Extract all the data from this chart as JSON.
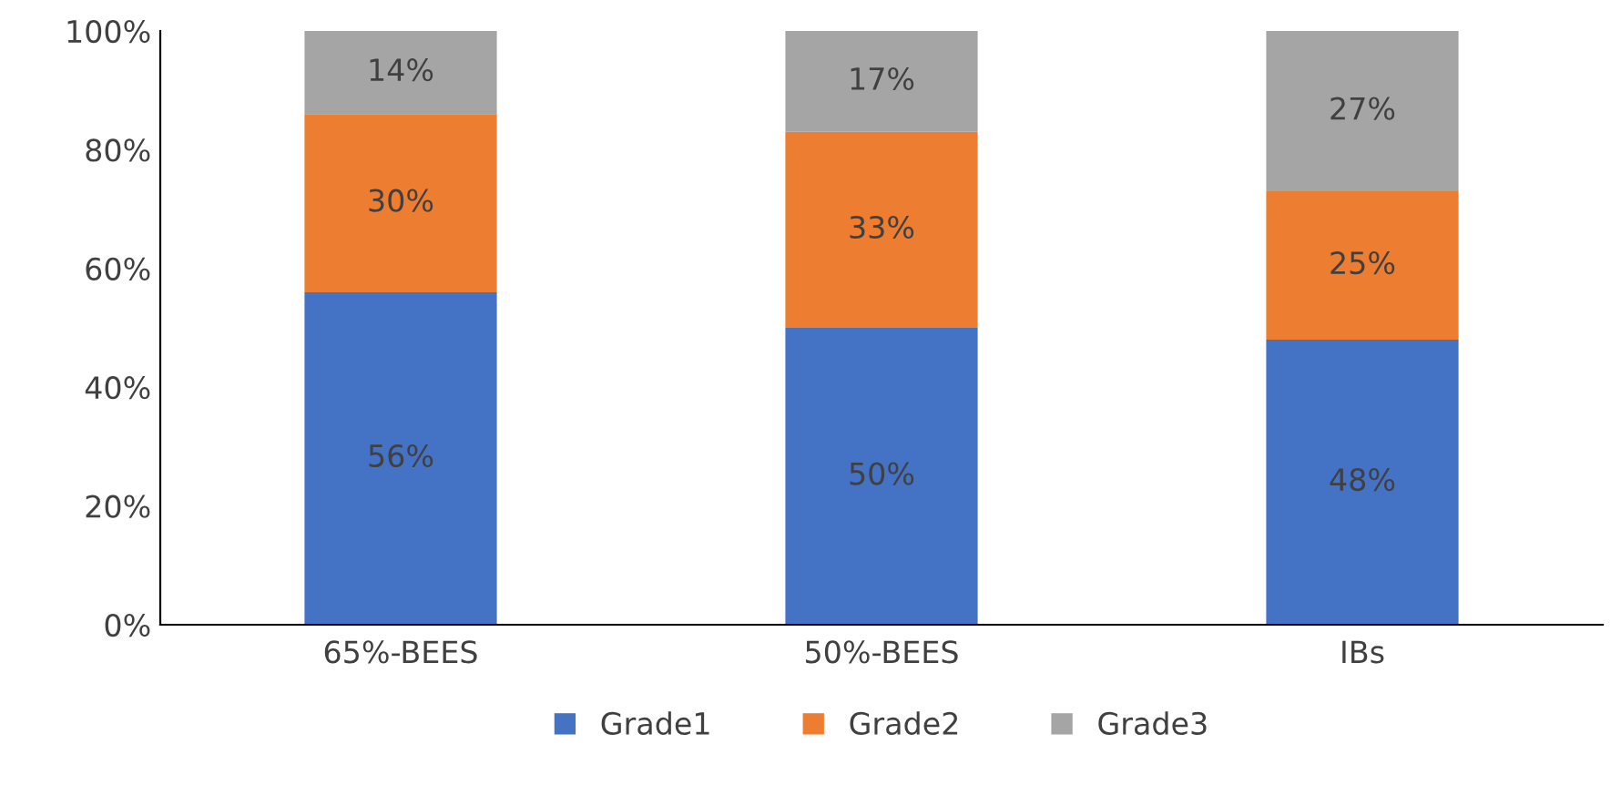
{
  "chart_data": {
    "type": "bar",
    "stacked": true,
    "categories": [
      "65%-BEES",
      "50%-BEES",
      "IBs"
    ],
    "series": [
      {
        "name": "Grade1",
        "color": "#4472c4",
        "values": [
          56,
          50,
          48
        ],
        "value_labels": [
          "56%",
          "50%",
          "48%"
        ]
      },
      {
        "name": "Grade2",
        "color": "#ed7d31",
        "values": [
          30,
          33,
          25
        ],
        "value_labels": [
          "30%",
          "33%",
          "25%"
        ]
      },
      {
        "name": "Grade3",
        "color": "#a5a5a5",
        "values": [
          14,
          17,
          27
        ],
        "value_labels": [
          "14%",
          "17%",
          "27%"
        ]
      }
    ],
    "ylim": [
      0,
      100
    ],
    "yticks": [
      {
        "value": 0,
        "label": "0%"
      },
      {
        "value": 20,
        "label": "20%"
      },
      {
        "value": 40,
        "label": "40%"
      },
      {
        "value": 60,
        "label": "60%"
      },
      {
        "value": 80,
        "label": "80%"
      },
      {
        "value": 100,
        "label": "100%"
      }
    ],
    "grid": false,
    "legend": "bottom"
  }
}
